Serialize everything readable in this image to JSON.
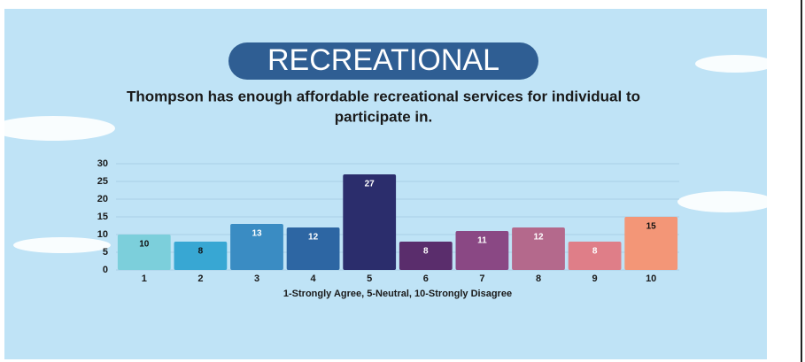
{
  "chart_data": {
    "type": "bar",
    "title": "RECREATIONAL",
    "subtitle": [
      "Thompson has enough affordable recreational services for individual to",
      "participate in."
    ],
    "x_label": "1-Strongly Agree, 5-Neutral, 10-Strongly Disagree",
    "categories": [
      "1",
      "2",
      "3",
      "4",
      "5",
      "6",
      "7",
      "8",
      "9",
      "10"
    ],
    "values": [
      10,
      8,
      13,
      12,
      27,
      8,
      11,
      12,
      8,
      15
    ],
    "colors": [
      "#7ccfdb",
      "#38a7d3",
      "#3a8cc3",
      "#2d66a3",
      "#2b2d6c",
      "#5a2d6c",
      "#8a4884",
      "#b4698c",
      "#df7e88",
      "#f39677"
    ],
    "label_colors": [
      "#111111",
      "#111111",
      "#ffffff",
      "#ffffff",
      "#ffffff",
      "#ffffff",
      "#ffffff",
      "#ffffff",
      "#ffffff",
      "#111111"
    ],
    "ylim": [
      0,
      30
    ],
    "yticks": [
      0,
      5,
      10,
      15,
      20,
      25,
      30
    ],
    "grid": true
  }
}
